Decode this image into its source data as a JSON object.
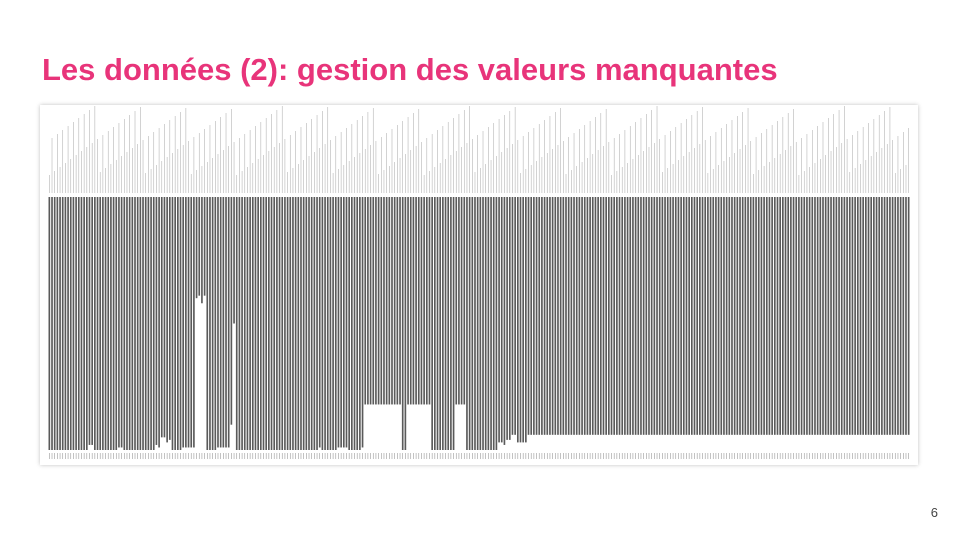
{
  "title": "Les données (2): gestion des valeurs manquantes",
  "page_number": "6",
  "colors": {
    "title": "#e8347a",
    "bars": "#5a5a5a"
  },
  "chart_data": {
    "type": "bar",
    "title": "",
    "xlabel": "",
    "ylabel": "",
    "grid": false,
    "ylim": [
      0,
      1
    ],
    "series": [
      {
        "values": [
          1,
          1,
          1,
          1,
          1,
          1,
          1,
          1,
          1,
          1,
          1,
          1,
          1,
          1,
          1,
          0.98,
          0.98,
          1,
          1,
          1,
          1,
          1,
          1,
          1,
          1,
          1,
          0.99,
          0.99,
          1,
          1,
          1,
          1,
          1,
          1,
          1,
          1,
          1,
          1,
          1,
          1,
          0.98,
          0.99,
          0.95,
          0.95,
          0.97,
          0.96,
          1,
          1,
          1,
          1,
          0.99,
          0.99,
          0.99,
          0.99,
          0.99,
          0.4,
          0.39,
          0.42,
          0.39,
          1,
          1,
          1,
          1,
          0.99,
          0.99,
          0.99,
          0.99,
          0.99,
          0.9,
          0.5,
          1,
          1,
          1,
          1,
          1,
          1,
          1,
          1,
          1,
          1,
          1,
          1,
          1,
          1,
          1,
          1,
          1,
          1,
          1,
          1,
          1,
          1,
          1,
          1,
          1,
          1,
          1,
          1,
          1,
          1,
          1,
          0.99,
          1,
          1,
          1,
          1,
          1,
          1,
          0.99,
          0.99,
          0.99,
          0.99,
          1,
          1,
          1,
          1,
          1,
          0.99,
          0.82,
          0.82,
          0.82,
          0.82,
          0.82,
          0.82,
          0.82,
          0.82,
          0.82,
          0.82,
          0.82,
          0.82,
          0.82,
          0.82,
          1,
          1,
          0.82,
          0.82,
          0.82,
          0.82,
          0.82,
          0.82,
          0.82,
          0.82,
          0.82,
          1,
          1,
          1,
          1,
          1,
          1,
          1,
          1,
          1,
          0.82,
          0.82,
          0.82,
          0.82,
          1,
          1,
          1,
          1,
          1,
          1,
          1,
          1,
          1,
          1,
          1,
          1,
          0.97,
          0.97,
          0.98,
          0.96,
          0.96,
          0.94,
          0.94,
          0.97,
          0.97,
          0.97,
          0.97,
          0.94,
          0.94,
          0.94,
          0.94,
          0.94,
          0.94,
          0.94,
          0.94,
          0.94,
          0.94,
          0.94,
          0.94,
          0.94,
          0.94,
          0.94,
          0.94,
          0.94,
          0.94,
          0.94,
          0.94,
          0.94,
          0.94,
          0.94,
          0.94,
          0.94,
          0.94,
          0.94,
          0.94,
          0.94,
          0.94,
          0.94,
          0.94,
          0.94,
          0.94,
          0.94,
          0.94,
          0.94,
          0.94,
          0.94,
          0.94,
          0.94,
          0.94,
          0.94,
          0.94,
          0.94,
          0.94,
          0.94,
          0.94,
          0.94,
          0.94,
          0.94,
          0.94,
          0.94,
          0.94,
          0.94,
          0.94,
          0.94,
          0.94,
          0.94,
          0.94,
          0.94,
          0.94,
          0.94,
          0.94,
          0.94,
          0.94,
          0.94,
          0.94,
          0.94,
          0.94,
          0.94,
          0.94,
          0.94,
          0.94,
          0.94,
          0.94,
          0.94,
          0.94,
          0.94,
          0.94,
          0.94,
          0.94,
          0.94,
          0.94,
          0.94,
          0.94,
          0.94,
          0.94,
          0.94,
          0.94,
          0.94,
          0.94,
          0.94,
          0.94,
          0.94,
          0.94,
          0.94,
          0.94,
          0.94,
          0.94,
          0.94,
          0.94,
          0.94,
          0.94,
          0.94,
          0.94,
          0.94,
          0.94,
          0.94,
          0.94,
          0.94,
          0.94,
          0.94,
          0.94,
          0.94,
          0.94,
          0.94,
          0.94,
          0.94,
          0.94,
          0.94,
          0.94,
          0.94,
          0.94,
          0.94,
          0.94,
          0.94,
          0.94,
          0.94,
          0.94,
          0.94,
          0.94,
          0.94,
          0.94,
          0.94,
          0.94,
          0.94,
          0.94,
          0.94,
          0.94,
          0.94,
          0.94,
          0.94
        ]
      }
    ]
  }
}
